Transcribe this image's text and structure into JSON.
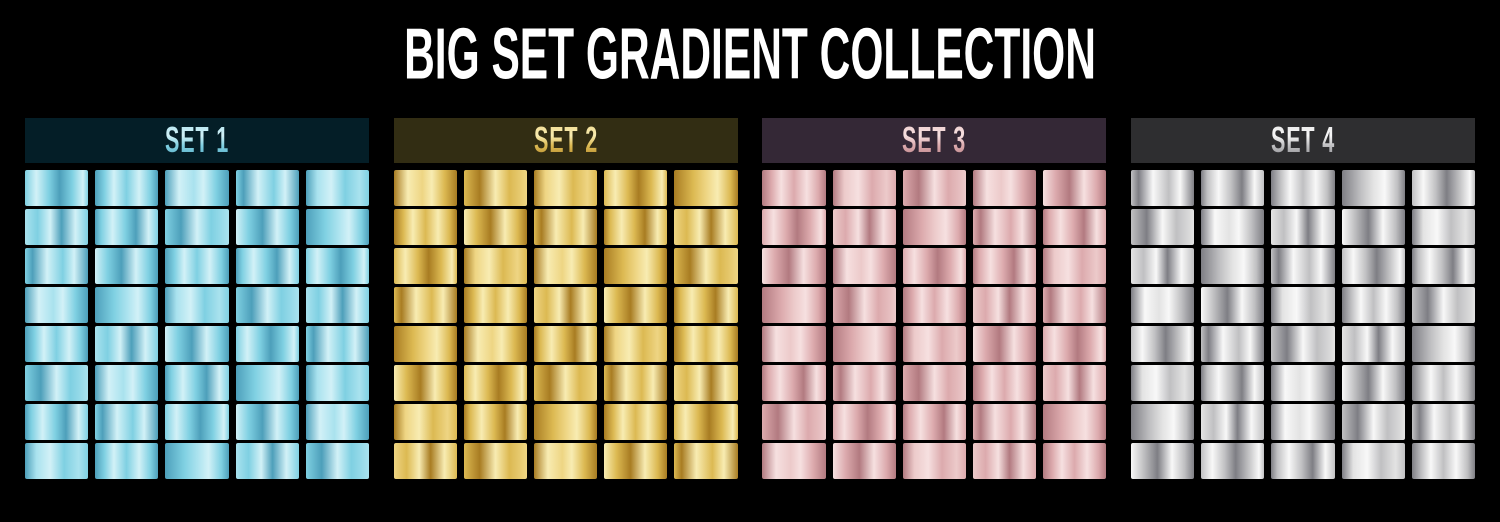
{
  "title": "BIG SET GRADIENT COLLECTION",
  "background": "#000000",
  "title_color": "#ffffff",
  "grid": {
    "columns": 5,
    "rows": 8
  },
  "gradient_variants": [
    [
      [
        0,
        "m"
      ],
      [
        18,
        "h"
      ],
      [
        38,
        "m"
      ],
      [
        55,
        "d"
      ],
      [
        75,
        "m"
      ],
      [
        92,
        "h"
      ],
      [
        100,
        "m"
      ]
    ],
    [
      [
        0,
        "d"
      ],
      [
        15,
        "m"
      ],
      [
        30,
        "h"
      ],
      [
        50,
        "m"
      ],
      [
        70,
        "h"
      ],
      [
        88,
        "m"
      ],
      [
        100,
        "d"
      ]
    ],
    [
      [
        0,
        "d"
      ],
      [
        22,
        "h"
      ],
      [
        45,
        "l"
      ],
      [
        60,
        "h"
      ],
      [
        80,
        "m"
      ],
      [
        100,
        "d"
      ]
    ],
    [
      [
        0,
        "m"
      ],
      [
        12,
        "d"
      ],
      [
        35,
        "h"
      ],
      [
        60,
        "m"
      ],
      [
        78,
        "h"
      ],
      [
        100,
        "d"
      ]
    ],
    [
      [
        0,
        "d"
      ],
      [
        18,
        "l"
      ],
      [
        40,
        "h"
      ],
      [
        62,
        "m"
      ],
      [
        85,
        "l"
      ],
      [
        100,
        "m"
      ]
    ],
    [
      [
        0,
        "l"
      ],
      [
        20,
        "m"
      ],
      [
        40,
        "h"
      ],
      [
        58,
        "d"
      ],
      [
        80,
        "h"
      ],
      [
        100,
        "m"
      ]
    ],
    [
      [
        0,
        "d"
      ],
      [
        10,
        "m"
      ],
      [
        28,
        "h"
      ],
      [
        48,
        "m"
      ],
      [
        65,
        "d"
      ],
      [
        85,
        "h"
      ],
      [
        100,
        "m"
      ]
    ],
    [
      [
        0,
        "m"
      ],
      [
        25,
        "d"
      ],
      [
        50,
        "h"
      ],
      [
        72,
        "m"
      ],
      [
        100,
        "l"
      ]
    ],
    [
      [
        0,
        "h"
      ],
      [
        20,
        "m"
      ],
      [
        42,
        "d"
      ],
      [
        65,
        "h"
      ],
      [
        85,
        "m"
      ],
      [
        100,
        "d"
      ]
    ],
    [
      [
        0,
        "d"
      ],
      [
        30,
        "m"
      ],
      [
        50,
        "l"
      ],
      [
        68,
        "h"
      ],
      [
        88,
        "m"
      ],
      [
        100,
        "d"
      ]
    ]
  ],
  "sets": [
    {
      "label": "SET 1",
      "theme": "blue",
      "header_bg": "#041e27",
      "tones": {
        "d": "#4d9fba",
        "m": "#7fd0e2",
        "l": "#a9e2ee",
        "h": "#d2f1f7"
      },
      "cells": [
        0,
        1,
        2,
        3,
        4,
        5,
        6,
        7,
        8,
        9,
        3,
        8,
        1,
        6,
        0,
        2,
        9,
        4,
        7,
        5,
        1,
        5,
        8,
        0,
        3,
        7,
        2,
        6,
        9,
        4,
        6,
        3,
        0,
        8,
        2,
        4,
        1,
        9,
        5,
        7
      ]
    },
    {
      "label": "SET 2",
      "theme": "gold",
      "header_bg": "#322d13",
      "tones": {
        "d": "#a87c22",
        "m": "#dcb952",
        "l": "#eed583",
        "h": "#f8ecb2"
      },
      "cells": [
        2,
        7,
        4,
        0,
        9,
        1,
        8,
        3,
        6,
        5,
        0,
        4,
        2,
        9,
        7,
        3,
        1,
        5,
        8,
        6,
        9,
        2,
        6,
        4,
        1,
        8,
        0,
        7,
        3,
        5,
        4,
        6,
        9,
        1,
        0,
        5,
        7,
        2,
        8,
        3
      ]
    },
    {
      "label": "SET 3",
      "theme": "rose",
      "header_bg": "#342836",
      "tones": {
        "d": "#b27a80",
        "m": "#dcaaad",
        "l": "#eccaca",
        "h": "#f6e0e0"
      },
      "cells": [
        1,
        4,
        7,
        2,
        8,
        0,
        5,
        9,
        3,
        6,
        8,
        2,
        0,
        6,
        4,
        9,
        7,
        1,
        5,
        3,
        2,
        9,
        4,
        8,
        0,
        6,
        3,
        7,
        1,
        5,
        7,
        0,
        6,
        3,
        9,
        2,
        8,
        4,
        5,
        1
      ]
    },
    {
      "label": "SET 4",
      "theme": "silver",
      "header_bg": "#2e2e30",
      "tones": {
        "d": "#7e7e84",
        "m": "#c0c0c2",
        "l": "#e3e3e3",
        "h": "#f8f8f8"
      },
      "cells": [
        3,
        6,
        1,
        9,
        0,
        7,
        2,
        5,
        8,
        4,
        5,
        9,
        3,
        0,
        6,
        2,
        8,
        4,
        1,
        7,
        0,
        3,
        7,
        5,
        9,
        4,
        6,
        2,
        8,
        1,
        9,
        5,
        2,
        7,
        3,
        8,
        0,
        6,
        4,
        1
      ]
    }
  ]
}
